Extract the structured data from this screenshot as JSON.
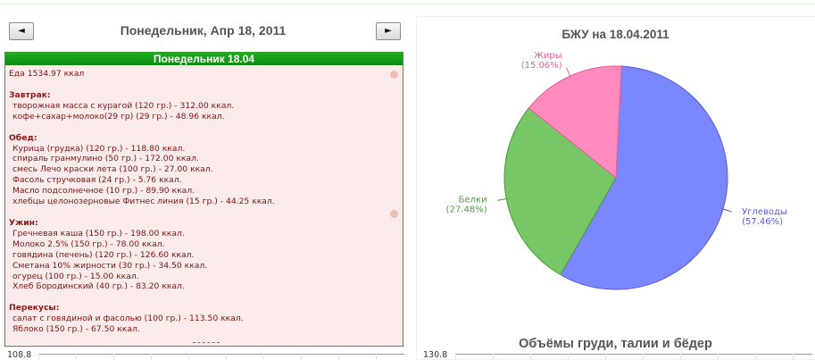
{
  "nav": {
    "prev_label": "◄",
    "next_label": "►"
  },
  "day": {
    "title": "Понедельник, Апр 18, 2011",
    "header": "Понедельник 18.04",
    "total": "Еда 1534.97 ккал"
  },
  "meals": [
    {
      "title": "Завтрак:",
      "items": [
        "творожная масса с курагой (120 гр.) - 312.00 ккал.",
        "кофе+сахар+молоко(29 гр) (29 гр.) - 48.96 ккал."
      ]
    },
    {
      "title": "Обед:",
      "items": [
        "Курица (грудка) (120 гр.) - 118.80 ккал.",
        "спираль гранмулино (50 гр.) - 172.00 ккал.",
        "смесь Лечо краски лета (100 гр.) - 27.00 ккал.",
        "Фасоль стручковая (24 гр.) - 5.76 ккал.",
        "Масло подсолнечное (10 гр.) - 89.90 ккал.",
        "хлебцы целонозерновые Фитнес линия (15 гр.) - 44.25 ккал."
      ]
    },
    {
      "title": "Ужин:",
      "items": [
        "Гречневая каша (150 гр.) - 198.00 ккал.",
        "Молоко 2.5% (150 гр.) - 78.00 ккал.",
        "говядина (печень) (120 гр.) - 126.60 ккал.",
        "Сметана 10% жирности (30 гр.) - 34.50 ккал.",
        "огурец (100 гр.) - 15.00 ккал.",
        "Хлеб Бородинский (40 гр.) - 83.20 ккал."
      ]
    },
    {
      "title": "Перекусы:",
      "items": [
        "салат с говядиной и фасолью (100 гр.) - 113.50 ккал.",
        "Яблоко (150 гр.) - 67.50 ккал."
      ]
    }
  ],
  "pie": {
    "title": "БЖУ на 18.04.2011"
  },
  "chart_data": {
    "type": "pie",
    "title": "БЖУ на 18.04.2011",
    "slices": [
      {
        "name": "Углеводы",
        "value": 57.46,
        "label_pct": "(57.46%)",
        "color": "#7b87ff",
        "stroke": "#5a5ae6"
      },
      {
        "name": "Белки",
        "value": 27.48,
        "label_pct": "(27.48%)",
        "color": "#77c766",
        "stroke": "#4a9d3a"
      },
      {
        "name": "Жиры",
        "value": 15.06,
        "label_pct": "(15.06%)",
        "color": "#ff8abd",
        "stroke": "#e45f98"
      }
    ]
  },
  "volumes": {
    "title": "Объёмы груди, талии и бёдер"
  },
  "mini_charts": {
    "left_ymax": "108.8",
    "right_ymax": "130.8"
  }
}
